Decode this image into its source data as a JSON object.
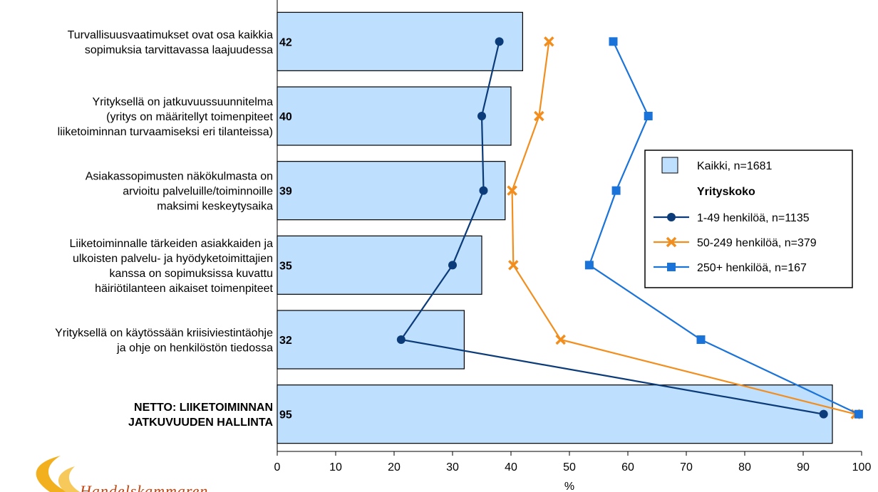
{
  "chart_data": {
    "type": "bar",
    "orientation": "horizontal",
    "categories": [
      [
        "Turvallisuusvaatimukset ovat osa kaikkia",
        "sopimuksia tarvittavassa laajuudessa"
      ],
      [
        "Yrityksellä on jatkuvuussuunnitelma",
        "(yritys on määritellyt toimenpiteet",
        "liiketoiminnan turvaamiseksi eri tilanteissa)"
      ],
      [
        "Asiakassopimusten näkökulmasta on",
        "arvioitu palveluille/toiminnoille",
        "maksimi keskeytysaika"
      ],
      [
        "Liiketoiminnalle tärkeiden asiakkaiden ja",
        "ulkoisten palvelu- ja hyödyketoimittajien",
        "kanssa on sopimuksissa kuvattu",
        "häiriötilanteen aikaiset toimenpiteet"
      ],
      [
        "Yrityksellä on käytössään kriisiviestintäohje",
        "ja ohje on henkilöstön tiedossa"
      ],
      [
        "NETTO: LIIKETOIMINNAN",
        "JATKUVUUDEN HALLINTA"
      ]
    ],
    "bold_categories": [
      false,
      false,
      false,
      false,
      false,
      true
    ],
    "bar_series": {
      "name": "Kaikki, n=1681",
      "values": [
        42,
        40,
        39,
        35,
        32,
        95
      ],
      "value_labels": [
        "42",
        "40",
        "39",
        "35",
        "32",
        "95"
      ],
      "color": "#bfdfff",
      "border": "#000000"
    },
    "line_series": [
      {
        "name": "1-49 henkilöä, n=1135",
        "values": [
          38,
          35,
          35.3,
          30,
          21.2,
          93.5
        ],
        "color": "#0b3b78",
        "marker": "circle"
      },
      {
        "name": "50-249 henkilöä, n=379",
        "values": [
          46.5,
          44.8,
          40.2,
          40.4,
          48.5,
          99
        ],
        "color": "#f28e1e",
        "marker": "cross"
      },
      {
        "name": "250+ henkilöä, n=167",
        "values": [
          57.5,
          63.5,
          58,
          53.4,
          72.5,
          99.5
        ],
        "color": "#1a73d9",
        "marker": "square"
      }
    ],
    "xlim": [
      0,
      100
    ],
    "x_ticks": [
      "0",
      "10",
      "20",
      "30",
      "40",
      "50",
      "60",
      "70",
      "80",
      "90",
      "100"
    ],
    "xlabel": "%",
    "ylabel": "",
    "grid": false,
    "legend": {
      "placement": "right",
      "bar_entry": "Kaikki, n=1681",
      "group_title": "Yrityskoko",
      "line_entries": [
        "1-49 henkilöä, n=1135",
        "50-249 henkilöä, n=379",
        "250+ henkilöä, n=167"
      ]
    }
  },
  "logo": {
    "text": "Handelskammaren",
    "color": "#f2b01e"
  }
}
